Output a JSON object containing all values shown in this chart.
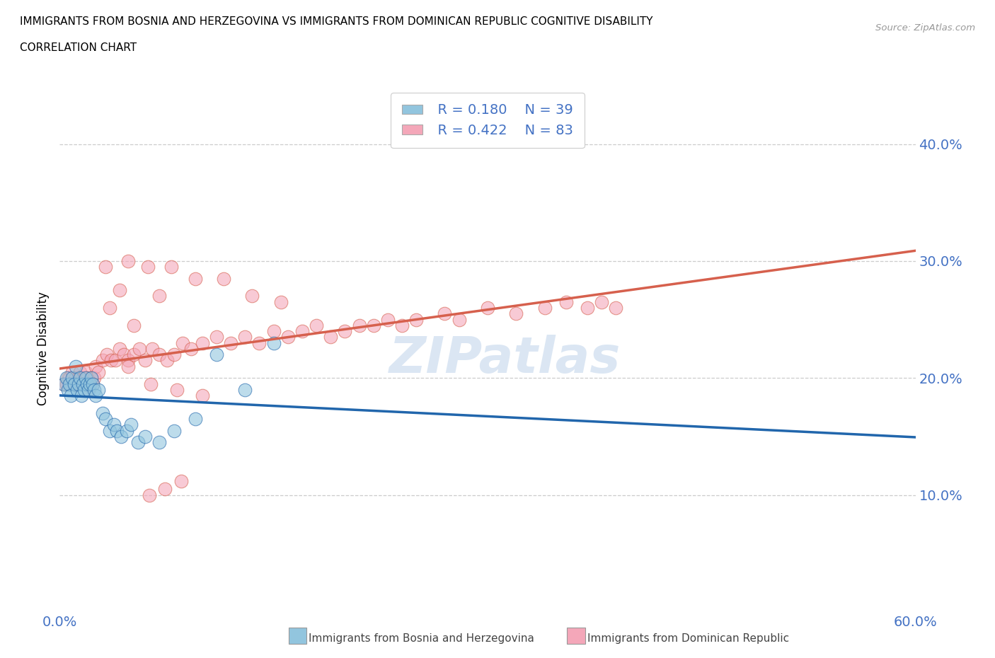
{
  "title_line1": "IMMIGRANTS FROM BOSNIA AND HERZEGOVINA VS IMMIGRANTS FROM DOMINICAN REPUBLIC COGNITIVE DISABILITY",
  "title_line2": "CORRELATION CHART",
  "source": "Source: ZipAtlas.com",
  "ylabel": "Cognitive Disability",
  "xlim": [
    0.0,
    0.6
  ],
  "ylim": [
    0.0,
    0.45
  ],
  "xticks": [
    0.0,
    0.1,
    0.2,
    0.3,
    0.4,
    0.5,
    0.6
  ],
  "yticks": [
    0.1,
    0.2,
    0.3,
    0.4
  ],
  "color_bosnia": "#92c5de",
  "color_dominican": "#f4a7b9",
  "color_bosnia_line": "#2166ac",
  "color_dominican_line": "#d6604d",
  "color_axis_text": "#4472c4",
  "watermark_color": "#b8cfe8",
  "legend_r1": "R = 0.180",
  "legend_n1": "N = 39",
  "legend_r2": "R = 0.422",
  "legend_n2": "N = 83",
  "bosnia_x": [
    0.003,
    0.005,
    0.006,
    0.007,
    0.008,
    0.009,
    0.01,
    0.011,
    0.012,
    0.013,
    0.014,
    0.015,
    0.016,
    0.017,
    0.018,
    0.019,
    0.02,
    0.021,
    0.022,
    0.023,
    0.024,
    0.025,
    0.027,
    0.03,
    0.032,
    0.035,
    0.038,
    0.04,
    0.043,
    0.047,
    0.05,
    0.055,
    0.06,
    0.07,
    0.08,
    0.095,
    0.11,
    0.13,
    0.15
  ],
  "bosnia_y": [
    0.195,
    0.2,
    0.19,
    0.195,
    0.185,
    0.2,
    0.195,
    0.21,
    0.19,
    0.195,
    0.2,
    0.185,
    0.195,
    0.19,
    0.2,
    0.195,
    0.19,
    0.195,
    0.2,
    0.195,
    0.19,
    0.185,
    0.19,
    0.17,
    0.165,
    0.155,
    0.16,
    0.155,
    0.15,
    0.155,
    0.16,
    0.145,
    0.15,
    0.145,
    0.155,
    0.165,
    0.22,
    0.19,
    0.23
  ],
  "dominican_x": [
    0.003,
    0.005,
    0.006,
    0.007,
    0.008,
    0.009,
    0.01,
    0.011,
    0.012,
    0.013,
    0.014,
    0.015,
    0.016,
    0.017,
    0.018,
    0.019,
    0.02,
    0.021,
    0.022,
    0.023,
    0.024,
    0.025,
    0.027,
    0.03,
    0.033,
    0.036,
    0.039,
    0.042,
    0.045,
    0.048,
    0.052,
    0.056,
    0.06,
    0.065,
    0.07,
    0.075,
    0.08,
    0.086,
    0.092,
    0.1,
    0.11,
    0.12,
    0.13,
    0.14,
    0.15,
    0.16,
    0.17,
    0.18,
    0.19,
    0.2,
    0.21,
    0.22,
    0.23,
    0.24,
    0.25,
    0.27,
    0.28,
    0.3,
    0.32,
    0.34,
    0.355,
    0.37,
    0.38,
    0.39,
    0.07,
    0.095,
    0.115,
    0.135,
    0.155,
    0.048,
    0.062,
    0.078,
    0.032,
    0.042,
    0.052,
    0.063,
    0.074,
    0.085,
    0.035,
    0.048,
    0.064,
    0.082,
    0.1
  ],
  "dominican_y": [
    0.195,
    0.195,
    0.2,
    0.2,
    0.195,
    0.205,
    0.195,
    0.2,
    0.195,
    0.2,
    0.205,
    0.195,
    0.2,
    0.195,
    0.205,
    0.2,
    0.19,
    0.195,
    0.2,
    0.195,
    0.2,
    0.21,
    0.205,
    0.215,
    0.22,
    0.215,
    0.215,
    0.225,
    0.22,
    0.215,
    0.22,
    0.225,
    0.215,
    0.225,
    0.22,
    0.215,
    0.22,
    0.23,
    0.225,
    0.23,
    0.235,
    0.23,
    0.235,
    0.23,
    0.24,
    0.235,
    0.24,
    0.245,
    0.235,
    0.24,
    0.245,
    0.245,
    0.25,
    0.245,
    0.25,
    0.255,
    0.25,
    0.26,
    0.255,
    0.26,
    0.265,
    0.26,
    0.265,
    0.26,
    0.27,
    0.285,
    0.285,
    0.27,
    0.265,
    0.3,
    0.295,
    0.295,
    0.295,
    0.275,
    0.245,
    0.1,
    0.105,
    0.112,
    0.26,
    0.21,
    0.195,
    0.19,
    0.185
  ]
}
